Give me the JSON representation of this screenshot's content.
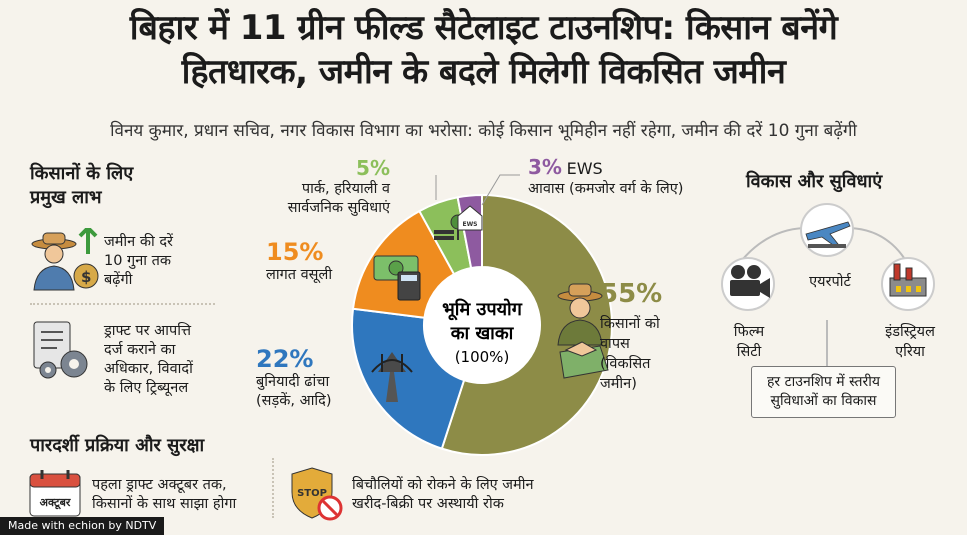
{
  "header": {
    "title_line1": "बिहार में 11 ग्रीन फील्ड सैटेलाइट टाउनशिप: किसान बनेंगे",
    "title_line2": "हितधारक, जमीन के बदले मिलेगी विकसित जमीन",
    "subtitle": "विनय कुमार, प्रधान सचिव, नगर विकास विभाग का भरोसा: कोई किसान भूमिहीन नहीं रहेगा, जमीन की दरें 10 गुना बढ़ेंगी"
  },
  "left_panel": {
    "title_line1": "किसानों के लिए",
    "title_line2": "प्रमुख लाभ",
    "benefit1": [
      "जमीन की दरें",
      "10 गुना तक",
      "बढ़ेंगी"
    ],
    "benefit2": [
      "ड्राफ्ट पर आपत्ति",
      "दर्ज कराने का",
      "अधिकार, विवादों",
      "के लिए ट्रिब्यूनल"
    ]
  },
  "bottom_panel": {
    "title": "पारदर्शी प्रक्रिया और सुरक्षा",
    "calendar_label": "अक्टूबर",
    "item1": [
      "पहला ड्राफ्ट अक्टूबर तक,",
      "किसानों के साथ साझा होगा"
    ],
    "stop_label": "STOP",
    "item2": [
      "बिचौलियों को रोकने के लिए जमीन",
      "खरीद-बिक्री पर अस्थायी रोक"
    ]
  },
  "right_panel": {
    "title": "विकास और सुविधाएं",
    "airport": "एयरपोर्ट",
    "film_city": [
      "फिल्म",
      "सिटी"
    ],
    "industrial": [
      "इंडस्ट्रियल",
      "एरिया"
    ],
    "box": [
      "हर टाउनशिप में स्तरीय",
      "सुविधाओं का विकास"
    ]
  },
  "chart_data": {
    "type": "pie",
    "title": "भूमि उपयोग का खाका",
    "center_line1": "भूमि उपयोग",
    "center_line2": "का खाका",
    "center_line3": "(100%)",
    "categories": [
      "किसानों को वापस (विकसित जमीन)",
      "बुनियादी ढांचा (सड़कें, आदि)",
      "लागत वसूली",
      "पार्क, हरियाली व सार्वजनिक सुविधाएं",
      "EWS आवास (कमजोर वर्ग के लिए)"
    ],
    "values": [
      55,
      22,
      15,
      5,
      3
    ],
    "labels": [
      {
        "pct": "55%",
        "lines": [
          "किसानों को",
          "वापस",
          "(विकसित",
          "जमीन)"
        ]
      },
      {
        "pct": "22%",
        "lines": [
          "बुनियादी ढांचा",
          "(सड़कें, आदि)"
        ]
      },
      {
        "pct": "15%",
        "lines": [
          "लागत वसूली"
        ]
      },
      {
        "pct": "5%",
        "lines": [
          "पार्क, हरियाली व",
          "सार्वजनिक सुविधाएं"
        ]
      },
      {
        "pct": "3%",
        "tag": "EWS",
        "lines": [
          "आवास (कमजोर वर्ग के लिए)"
        ]
      }
    ],
    "colors": [
      "#8d8c47",
      "#2f77be",
      "#ef8c1f",
      "#8cbf5b",
      "#8e5aa0"
    ],
    "ews_icon_text": "EWS"
  },
  "footer": {
    "text": "Made with echion by NDTV"
  }
}
